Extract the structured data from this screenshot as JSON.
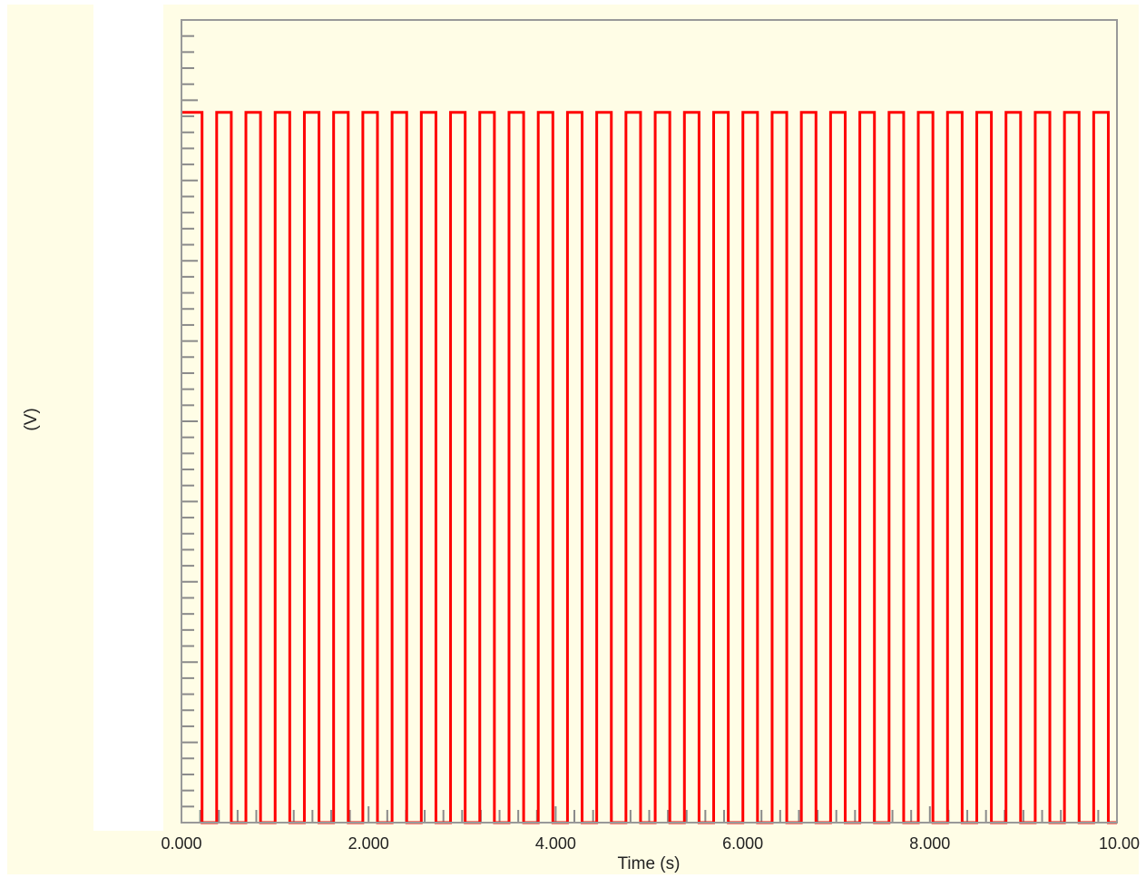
{
  "chart_data": {
    "type": "line",
    "title": "",
    "xlabel": "Time (s)",
    "ylabel": "(V)",
    "xlim": [
      0,
      10
    ],
    "ylim": [
      0,
      1.13
    ],
    "x_tick_labels": [
      "0.000",
      "2.000",
      "4.000",
      "6.000",
      "8.000",
      "10.00"
    ],
    "x_tick_values": [
      0,
      2,
      4,
      6,
      8,
      10
    ],
    "y_tick_labels_visible": false,
    "grid": false,
    "legend": "none",
    "series": [
      {
        "waveform": "square",
        "low": 0,
        "high": 1,
        "period_s": 0.3125,
        "duty_high": 0.5,
        "first_falling_edge_s": 0.22,
        "start_level": "high",
        "color": "#ff0000"
      }
    ]
  },
  "colors": {
    "plot_background": "#fffde6",
    "frame": "#999999",
    "tick": "#8a8a8a",
    "trace": "#ff0000"
  }
}
